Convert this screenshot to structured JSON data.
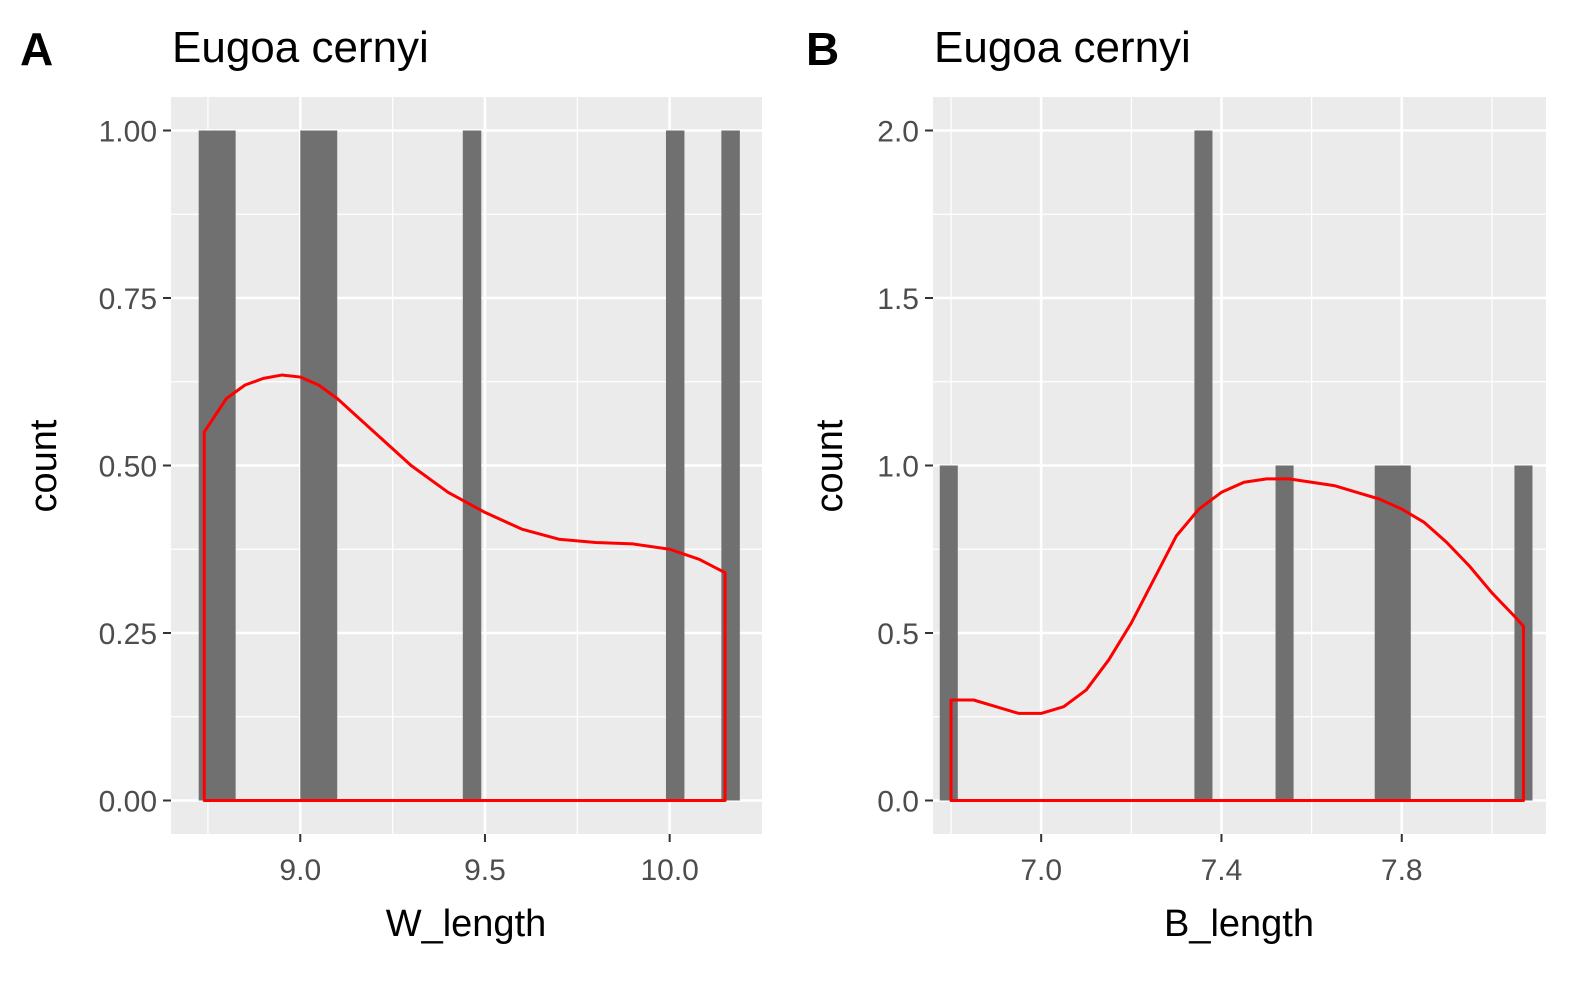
{
  "chart_data": [
    {
      "type": "bar",
      "panel_label": "A",
      "title": "Eugoa cernyi",
      "xlabel": "W_length",
      "ylabel": "count",
      "xlim": [
        8.65,
        10.25
      ],
      "ylim": [
        -0.05,
        1.05
      ],
      "xticks": [
        9.0,
        9.5,
        10.0
      ],
      "xtick_labels": [
        "9.0",
        "9.5",
        "10.0"
      ],
      "yticks": [
        0.0,
        0.25,
        0.5,
        0.75,
        1.0
      ],
      "ytick_labels": [
        "0.00",
        "0.25",
        "0.50",
        "0.75",
        "1.00"
      ],
      "grid": true,
      "bar_color": "#707070",
      "bars": [
        {
          "x0": 8.725,
          "x1": 8.825,
          "count": 1
        },
        {
          "x0": 9.0,
          "x1": 9.1,
          "count": 1
        },
        {
          "x0": 9.44,
          "x1": 9.49,
          "count": 1
        },
        {
          "x0": 9.99,
          "x1": 10.04,
          "count": 1
        },
        {
          "x0": 10.14,
          "x1": 10.19,
          "count": 1
        }
      ],
      "density_color": "#ff0000",
      "density": {
        "x": [
          8.74,
          8.8,
          8.85,
          8.9,
          8.95,
          9.0,
          9.05,
          9.1,
          9.2,
          9.3,
          9.4,
          9.5,
          9.6,
          9.7,
          9.8,
          9.9,
          10.0,
          10.08,
          10.15
        ],
        "y": [
          0.55,
          0.6,
          0.62,
          0.63,
          0.635,
          0.632,
          0.62,
          0.6,
          0.55,
          0.5,
          0.46,
          0.43,
          0.405,
          0.39,
          0.385,
          0.383,
          0.375,
          0.36,
          0.34
        ]
      }
    },
    {
      "type": "bar",
      "panel_label": "B",
      "title": "Eugoa cernyi",
      "xlabel": "B_length",
      "ylabel": "count",
      "xlim": [
        6.76,
        8.12
      ],
      "ylim": [
        -0.1,
        2.1
      ],
      "xticks": [
        7.0,
        7.4,
        7.8
      ],
      "xtick_labels": [
        "7.0",
        "7.4",
        "7.8"
      ],
      "yticks": [
        0.0,
        0.5,
        1.0,
        1.5,
        2.0
      ],
      "ytick_labels": [
        "0.0",
        "0.5",
        "1.0",
        "1.5",
        "2.0"
      ],
      "grid": true,
      "bar_color": "#707070",
      "bars": [
        {
          "x0": 6.775,
          "x1": 6.815,
          "count": 1
        },
        {
          "x0": 7.34,
          "x1": 7.38,
          "count": 2
        },
        {
          "x0": 7.52,
          "x1": 7.56,
          "count": 1
        },
        {
          "x0": 7.74,
          "x1": 7.82,
          "count": 1
        },
        {
          "x0": 8.05,
          "x1": 8.09,
          "count": 1
        }
      ],
      "density_color": "#ff0000",
      "density": {
        "x": [
          6.8,
          6.85,
          6.9,
          6.95,
          7.0,
          7.05,
          7.1,
          7.15,
          7.2,
          7.25,
          7.3,
          7.35,
          7.4,
          7.45,
          7.5,
          7.55,
          7.6,
          7.65,
          7.7,
          7.75,
          7.8,
          7.85,
          7.9,
          7.95,
          8.0,
          8.05,
          8.07
        ],
        "y": [
          0.3,
          0.3,
          0.28,
          0.26,
          0.26,
          0.28,
          0.33,
          0.42,
          0.53,
          0.66,
          0.79,
          0.87,
          0.92,
          0.95,
          0.96,
          0.96,
          0.95,
          0.94,
          0.92,
          0.9,
          0.87,
          0.83,
          0.77,
          0.7,
          0.62,
          0.55,
          0.52
        ]
      }
    }
  ]
}
